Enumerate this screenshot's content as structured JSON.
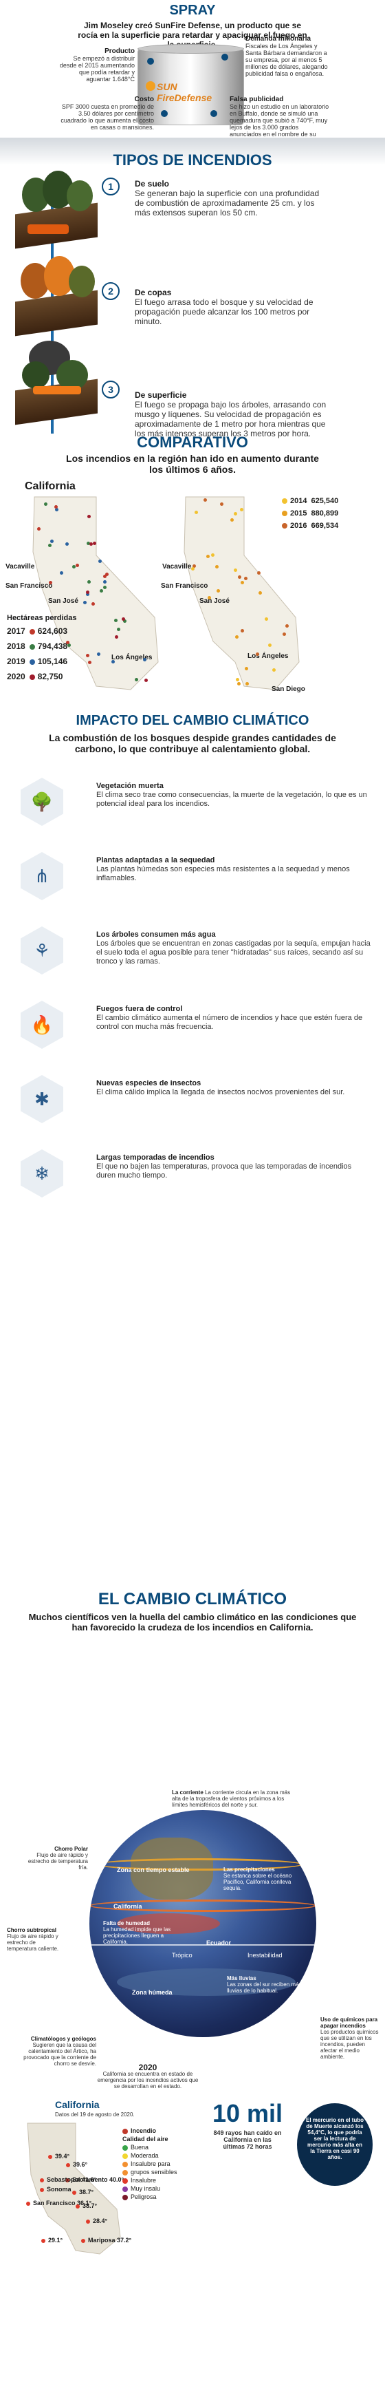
{
  "spray": {
    "title": "SPRAY",
    "intro": "Jim Moseley creó SunFire Defense, un producto que se rocía en la superficie para retardar y apaciguar  el fuego en la superficie.",
    "can_label": "SUN FireDefense",
    "producto_title": "Producto",
    "producto_text": "Se empezó a distribuir desde el 2015 aumentando que podía retardar y aguantar 1.648°C",
    "demanda_title": "Demanda millonaria",
    "demanda_text": "Fiscales de Los Ángeles y Santa Bárbara demandaron a su empresa, por al menos 5 millones de dólares, alegando publicidad falsa o engañosa.",
    "costo_title": "Costo",
    "costo_text": "SPF 3000 cuesta en promedio de 3.50 dólares por centímetro cuadrado lo que aumenta el costo en casas o mansiones.",
    "falsa_title": "Falsa publicidad",
    "falsa_text": "Se hizo un estudio en un laboratorio en Buffalo, donde se simuló una quemadura que subió a 740°F, muy lejos de los 3.000 grados anunciados en el nombre de su producto y que no pasó la prueba."
  },
  "tipos": {
    "title": "TIPOS DE INCENDIOS",
    "items": [
      {
        "num": "1",
        "title": "De suelo",
        "text": "Se generan bajo la  superficie con una profundidad de combustión de aproximadamente 25 cm. y los más extensos superan los 50 cm."
      },
      {
        "num": "2",
        "title": "De copas",
        "text": "El fuego arrasa todo el bosque y su velocidad de propagación puede alcanzar los 100 metros por minuto."
      },
      {
        "num": "3",
        "title": "De superficie",
        "text": "El fuego se propaga bajo los árboles, arrasando con musgo y líquenes. Su velocidad de propagación es aproximadamente de 1 metro por hora mientras que los más intensos superan los 3 metros por hora."
      }
    ]
  },
  "comparativo": {
    "title": "COMPARATIVO",
    "subtitle": "Los incendios en la región han ido en aumento durante los últimos 6 años.",
    "map_title": "California",
    "cities_left": [
      "Vacaville",
      "San Francisco",
      "San José",
      "Los Ángeles"
    ],
    "cities_right": [
      "Vacaville",
      "San Francisco",
      "San José",
      "Los Ángeles",
      "San Diego"
    ],
    "hect_title": "Hectáreas perdidas",
    "years_left": [
      {
        "year": "2017",
        "value": "624,603"
      },
      {
        "year": "2018",
        "value": "794,438"
      },
      {
        "year": "2019",
        "value": "105,146"
      },
      {
        "year": "2020",
        "value": "82,750"
      }
    ],
    "years_right": [
      {
        "year": "2014",
        "value": "625,540"
      },
      {
        "year": "2015",
        "value": "880,899"
      },
      {
        "year": "2016",
        "value": "669,534"
      }
    ],
    "colors": {
      "2017": "#c0392b",
      "2018": "#3a7d44",
      "2019": "#2a62a0",
      "2020": "#a01c2c",
      "2014": "#f2c230",
      "2015": "#e8a020",
      "2016": "#c8642a"
    }
  },
  "impacto": {
    "title": "IMPACTO DEL CAMBIO CLIMÁTICO",
    "subtitle": "La combustión de los bosques despide grandes cantidades de carbono, lo que contribuye al calentamiento global.",
    "items": [
      {
        "icon": "dead-tree-icon",
        "title": "Vegetación muerta",
        "text": "El clima seco trae como consecuencias, la muerte de la vegetación, lo que es un potencial ideal para los incendios."
      },
      {
        "icon": "grass-icon",
        "title": "Plantas adaptadas a la sequedad",
        "text": "Las plantas húmedas son especies más resistentes a la sequedad y menos inflamables."
      },
      {
        "icon": "roots-icon",
        "title": "Los árboles consumen más agua",
        "text": "Los árboles que se encuentran en zonas castigadas por la sequía, empujan hacia el suelo toda el agua posible para tener \"hidratadas\" sus raíces, secando así su tronco y las ramas."
      },
      {
        "icon": "fire-icon",
        "title": "Fuegos fuera de control",
        "text": "El cambio climático aumenta el número de incendios y hace que estén fuera de control con mucha más frecuencia."
      },
      {
        "icon": "insect-icon",
        "title": "Nuevas especies de insectos",
        "text": "El clima cálido implica la llegada de insectos nocivos provenientes del sur."
      },
      {
        "icon": "snowflake-icon",
        "title": "Largas temporadas de incendios",
        "text": "El que no bajen las temperaturas, provoca que las temporadas de incendios duren mucho tiempo."
      }
    ]
  },
  "cambio": {
    "title": "EL CAMBIO CLIMÁTICO",
    "subtitle": "Muchos científicos ven la huella del cambio climático en las condiciones que han favorecido la crudeza de los incendios en California.",
    "globe_labels": {
      "corriente_title": "La corriente",
      "corriente_text": "La corriente circula en la zona más alta de la troposfera de vientos próximos a los límites hemisféricos del norte y sur.",
      "chorro_polar_title": "Chorro Polar",
      "chorro_polar_text": "Flujo de aire rápido y estrecho de temperatura fría.",
      "zona_tiempo": "Zona con tiempo estable",
      "precipitaciones_title": "Las precipitaciones",
      "precipitaciones_text": "Se estanca sobre el océano Pacífico, California conlleva sequía.",
      "california": "California",
      "chorro_sub_title": "Chorro subtropical",
      "chorro_sub_text": "Flujo de aire rápido y estrecho de temperatura caliente.",
      "falta_humedad_title": "Falta de humedad",
      "falta_humedad_text": "La humedad impide que las precipitaciones lleguen a California.",
      "ecuador": "Ecuador",
      "inestabilidad": "Inestabilidad",
      "tropico": "Trópico",
      "zona_humeda": "Zona húmeda",
      "mas_lluvias_title": "Más lluvias",
      "mas_lluvias_text": "Las zonas del sur reciben más lluvias de lo habitual.",
      "uso_quimicos_title": "Uso de químicos para apagar incendios",
      "uso_quimicos_text": "Los productos químicos que se utilizan en los incendios, pueden afectar el medio ambiente.",
      "climatologos_title": "Climatólogos y geólogos",
      "climatologos_text": "Sugieren que la causa del calentamiento del Ártico, ha provocado que la corriente de chorro se desvíe."
    },
    "stat_2020_title": "2020",
    "stat_2020_text": "California se encuentra en estado de emergencia por los incendios activos que se desarrollan en el estado.",
    "map_title": "California",
    "map_date": "Datos del 19 de agosto de 2020.",
    "legend_incendio": "Incendio",
    "legend_calidad": "Calidad del aire",
    "legend_items": [
      {
        "label": "Buena",
        "color": "#3aa54a"
      },
      {
        "label": "Moderada",
        "color": "#f2d630"
      },
      {
        "label": "Insalubre para",
        "color": "#f29030"
      },
      {
        "label": "grupos sensibles",
        "color": "#f29030"
      },
      {
        "label": "Insalubre",
        "color": "#e03a2a"
      },
      {
        "label": "Muy insalu",
        "color": "#8a3aa0"
      },
      {
        "label": "Peligrosa",
        "color": "#7a1a2a"
      }
    ],
    "map_values": [
      {
        "city": "",
        "value": "39.4°"
      },
      {
        "city": "",
        "value": "39.6°"
      },
      {
        "city": "Sacramento",
        "value": "40.0°"
      },
      {
        "city": "San Francisco",
        "value": "36.1°"
      },
      {
        "city": "",
        "value": "38.7°"
      },
      {
        "city": "",
        "value": "28.4°"
      },
      {
        "city": "",
        "value": "38.7°"
      },
      {
        "city": "",
        "value": "29.1°"
      },
      {
        "city": "Mariposa",
        "value": "37.2°"
      },
      {
        "city": "Sonoma",
        "value": ""
      },
      {
        "city": "Sebastopol",
        "value": "41.6°"
      }
    ],
    "big_number": "10 mil",
    "big_text": "849 rayos han caído en California en las últimas 72 horas",
    "mercurio_text": "El mercurio en el tubo de Muerte alcanzó los 54,4°C, lo que podría ser la lectura de mercurio más alta en la Tierra en casi 90 años."
  }
}
